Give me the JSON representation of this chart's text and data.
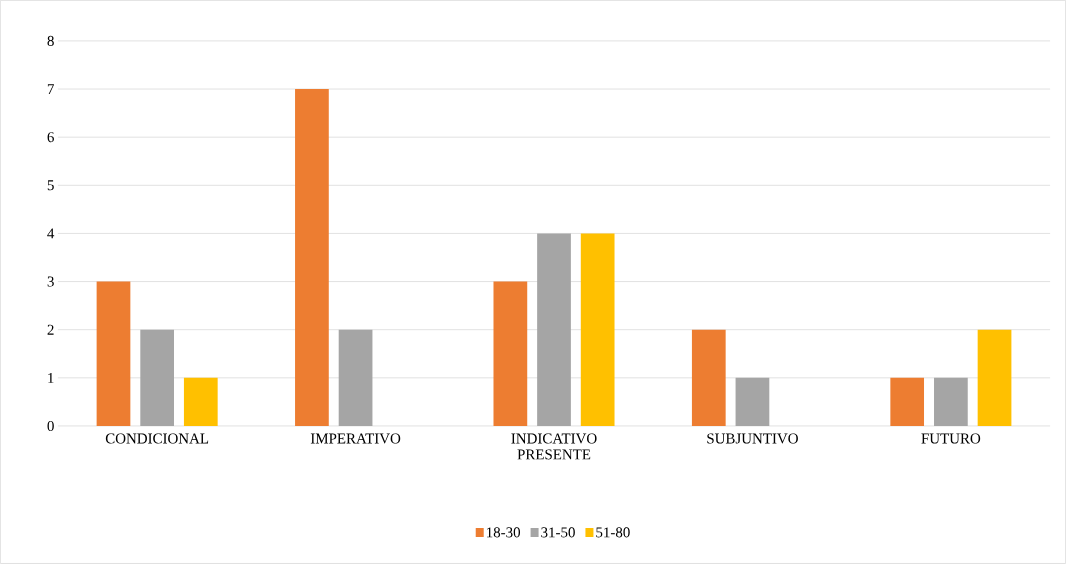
{
  "chart_data": {
    "type": "bar",
    "categories": [
      "CONDICIONAL",
      "IMPERATIVO",
      "INDICATIVO PRESENTE",
      "SUBJUNTIVO",
      "FUTURO"
    ],
    "series": [
      {
        "name": "18-30",
        "color": "#ed7d31",
        "values": [
          3,
          7,
          3,
          2,
          1
        ]
      },
      {
        "name": "31-50",
        "color": "#a5a5a5",
        "values": [
          2,
          2,
          4,
          1,
          1
        ]
      },
      {
        "name": "51-80",
        "color": "#ffc000",
        "values": [
          1,
          0,
          4,
          0,
          2
        ]
      }
    ],
    "ylim": [
      0,
      8
    ],
    "yticks": [
      0,
      1,
      2,
      3,
      4,
      5,
      6,
      7,
      8
    ],
    "grid": "y",
    "legend": "bottom"
  }
}
